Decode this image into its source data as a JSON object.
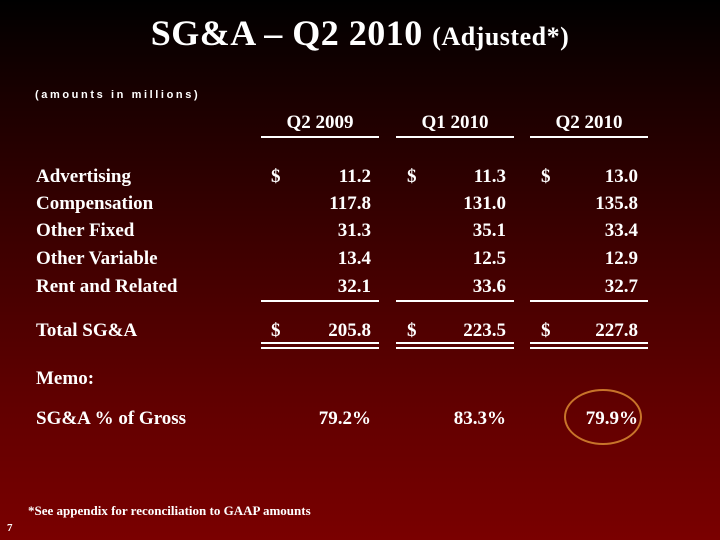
{
  "title": {
    "main": "SG&A – Q2 2010",
    "sub": "(Adjusted*)"
  },
  "units_note": "(amounts in millions)",
  "columns": [
    "Q2 2009",
    "Q1 2010",
    "Q2 2010"
  ],
  "rows": [
    {
      "label": "Advertising",
      "dollar": "$",
      "values": [
        "11.2",
        "11.3",
        "13.0"
      ]
    },
    {
      "label": "Compensation",
      "values": [
        "117.8",
        "131.0",
        "135.8"
      ]
    },
    {
      "label": "Other Fixed",
      "values": [
        "31.3",
        "35.1",
        "33.4"
      ]
    },
    {
      "label": "Other Variable",
      "values": [
        "13.4",
        "12.5",
        "12.9"
      ]
    },
    {
      "label": "Rent and Related",
      "values": [
        "32.1",
        "33.6",
        "32.7"
      ]
    }
  ],
  "total": {
    "label": "Total SG&A",
    "dollar": "$",
    "values": [
      "205.8",
      "223.5",
      "227.8"
    ]
  },
  "memo": {
    "label": "Memo:"
  },
  "pct_row": {
    "label": "SG&A % of Gross",
    "values": [
      "79.2%",
      "83.3%",
      "79.9%"
    ]
  },
  "footnote": "*See appendix for reconciliation to GAAP amounts",
  "page_number": "7"
}
